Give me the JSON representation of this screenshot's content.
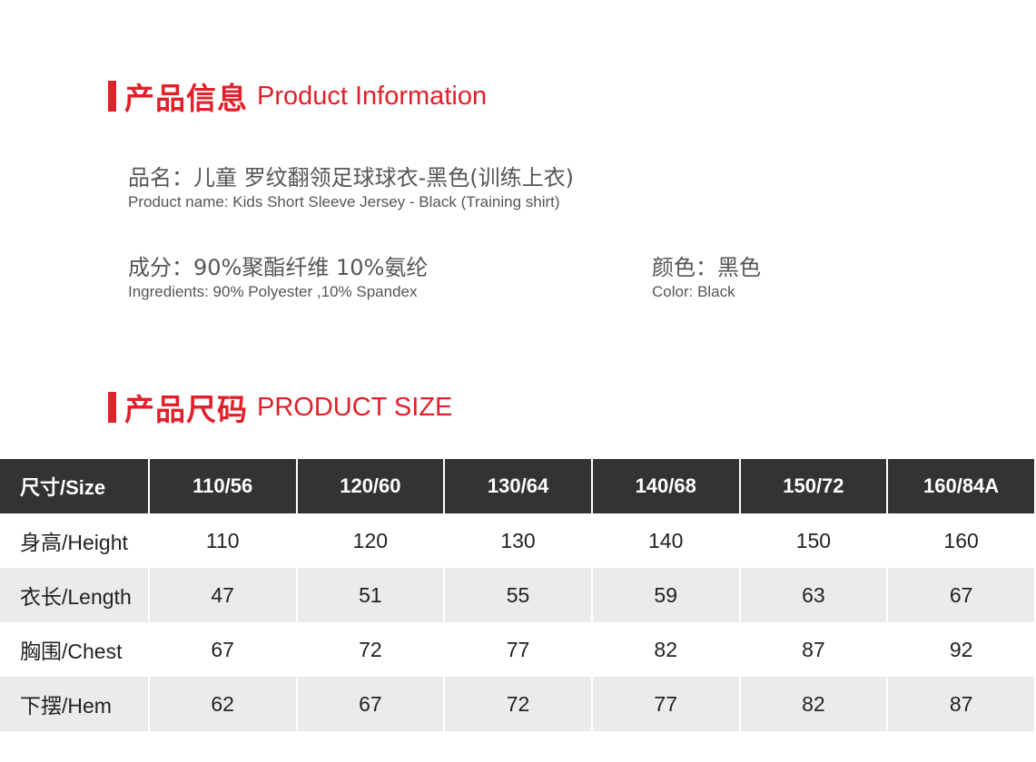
{
  "section_info": {
    "title_cn": "产品信息",
    "title_en": "Product Information"
  },
  "product_name": {
    "cn": "品名：儿童 罗纹翻领足球球衣-黑色(训练上衣)",
    "en": "Product name: Kids Short Sleeve Jersey - Black (Training shirt)"
  },
  "ingredients": {
    "cn": "成分：90%聚酯纤维 10%氨纶",
    "en": "Ingredients: 90% Polyester ,10% Spandex"
  },
  "color": {
    "cn": "颜色：黑色",
    "en": "Color: Black"
  },
  "section_size": {
    "title_cn": "产品尺码",
    "title_en": "PRODUCT SIZE"
  },
  "accent_color": "#e0202a",
  "size_table": {
    "headers": [
      "尺寸/Size",
      "110/56",
      "120/60",
      "130/64",
      "140/68",
      "150/72",
      "160/84A"
    ],
    "rows": [
      [
        "身高/Height",
        "110",
        "120",
        "130",
        "140",
        "150",
        "160"
      ],
      [
        "衣长/Length",
        "47",
        "51",
        "55",
        "59",
        "63",
        "67"
      ],
      [
        "胸围/Chest",
        "67",
        "72",
        "77",
        "82",
        "87",
        "92"
      ],
      [
        "下摆/Hem",
        "62",
        "67",
        "72",
        "77",
        "82",
        "87"
      ]
    ]
  }
}
